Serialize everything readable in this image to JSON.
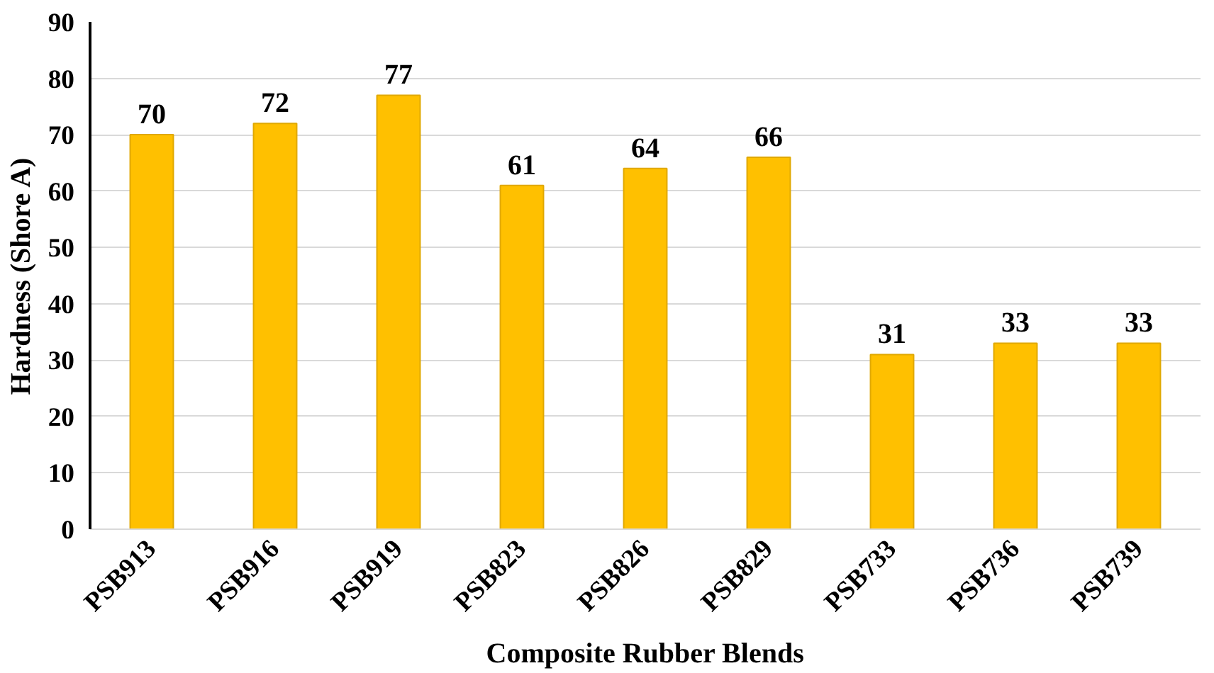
{
  "chart_data": {
    "type": "bar",
    "categories": [
      "PSB913",
      "PSB916",
      "PSB919",
      "PSB823",
      "PSB826",
      "PSB829",
      "PSB733",
      "PSB736",
      "PSB739"
    ],
    "values": [
      70,
      72,
      77,
      61,
      64,
      66,
      31,
      33,
      33
    ],
    "color": "#ffc000",
    "xlabel": "Composite Rubber Blends",
    "ylabel": "Hardness (Shore A)",
    "ylim": [
      0,
      90
    ],
    "yticks": [
      0,
      10,
      20,
      30,
      40,
      50,
      60,
      70,
      80,
      90
    ],
    "grid": "y",
    "data_labels": true
  }
}
